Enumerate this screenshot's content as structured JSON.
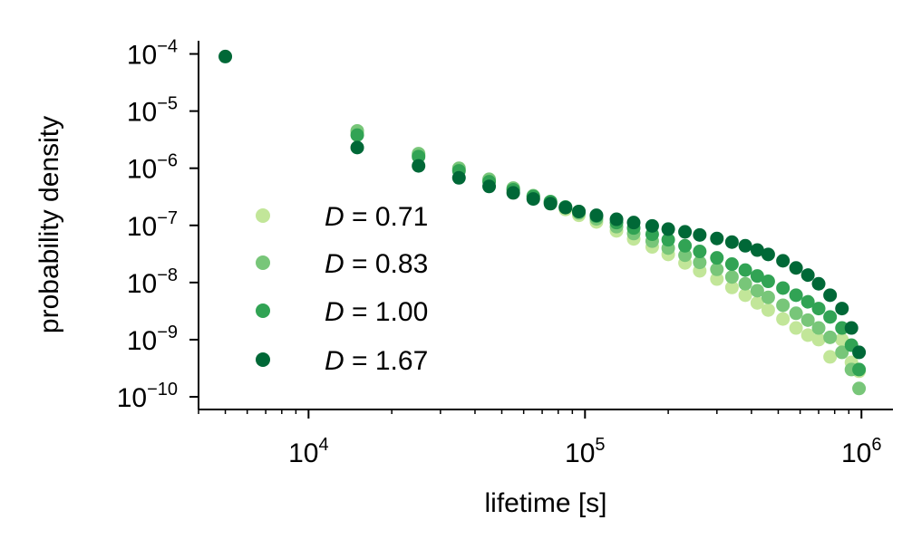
{
  "chart_data": {
    "type": "scatter",
    "xlabel": "lifetime [s]",
    "ylabel": "probability density",
    "xscale": "log",
    "yscale": "log",
    "xlim": [
      4000,
      1300000
    ],
    "ylim": [
      6e-11,
      0.00017
    ],
    "x_ticks": [
      {
        "value": 10000,
        "base": "10",
        "exp": "4"
      },
      {
        "value": 100000,
        "base": "10",
        "exp": "5"
      },
      {
        "value": 1000000,
        "base": "10",
        "exp": "6"
      }
    ],
    "y_ticks": [
      {
        "value": 0.0001,
        "base": "10",
        "exp": "−4"
      },
      {
        "value": 1e-05,
        "base": "10",
        "exp": "−5"
      },
      {
        "value": 1e-06,
        "base": "10",
        "exp": "−6"
      },
      {
        "value": 1e-07,
        "base": "10",
        "exp": "−7"
      },
      {
        "value": 1e-08,
        "base": "10",
        "exp": "−8"
      },
      {
        "value": 1e-09,
        "base": "10",
        "exp": "−9"
      },
      {
        "value": 1e-10,
        "base": "10",
        "exp": "−10"
      }
    ],
    "legend_position": "left",
    "grid": false,
    "series": [
      {
        "name": "D = 0.71",
        "symbol": "D",
        "value_text": " = 0.71",
        "color": "#c2e699",
        "x": [
          15000,
          25000,
          35000,
          45000,
          55000,
          65000,
          75000,
          85000,
          95000,
          110000,
          130000,
          150000,
          175000,
          200000,
          230000,
          260000,
          300000,
          340000,
          380000,
          420000,
          460000,
          520000,
          580000,
          640000,
          700000,
          770000,
          850000,
          920000,
          980000
        ],
        "y": [
          4.2e-06,
          1.7e-06,
          9.5e-07,
          6e-07,
          4.2e-07,
          3.1e-07,
          2.4e-07,
          1.9e-07,
          1.5e-07,
          1.15e-07,
          8e-08,
          5.8e-08,
          4.2e-08,
          3.1e-08,
          2.2e-08,
          1.6e-08,
          1.15e-08,
          8.2e-09,
          6e-09,
          4.4e-09,
          3.3e-09,
          2.3e-09,
          1.6e-09,
          1.2e-09,
          1e-09,
          5e-10,
          1e-09,
          4e-10,
          2.8e-10
        ]
      },
      {
        "name": "D = 0.83",
        "symbol": "D",
        "value_text": " = 0.83",
        "color": "#78c679",
        "x": [
          15000,
          25000,
          35000,
          45000,
          55000,
          65000,
          75000,
          85000,
          95000,
          110000,
          130000,
          150000,
          175000,
          200000,
          230000,
          260000,
          300000,
          340000,
          380000,
          420000,
          460000,
          520000,
          580000,
          640000,
          700000,
          770000,
          850000,
          920000,
          980000
        ],
        "y": [
          4.5e-06,
          1.8e-06,
          1e-06,
          6.4e-07,
          4.5e-07,
          3.3e-07,
          2.6e-07,
          2.05e-07,
          1.65e-07,
          1.3e-07,
          9.5e-08,
          7.2e-08,
          5.3e-08,
          4e-08,
          3e-08,
          2.25e-08,
          1.7e-08,
          1.25e-08,
          9.5e-09,
          7.2e-09,
          5.5e-09,
          4e-09,
          2.9e-09,
          2.2e-09,
          1.6e-09,
          1.1e-09,
          6e-10,
          3e-10,
          1.4e-10
        ]
      },
      {
        "name": "D = 1.00",
        "symbol": "D",
        "value_text": " = 1.00",
        "color": "#31a354",
        "x": [
          15000,
          25000,
          35000,
          45000,
          55000,
          65000,
          75000,
          85000,
          95000,
          110000,
          130000,
          150000,
          175000,
          200000,
          230000,
          260000,
          300000,
          340000,
          380000,
          420000,
          460000,
          520000,
          580000,
          640000,
          700000,
          770000,
          850000,
          920000,
          980000
        ],
        "y": [
          3.8e-06,
          1.6e-06,
          9e-07,
          5.8e-07,
          4.2e-07,
          3.2e-07,
          2.6e-07,
          2.1e-07,
          1.75e-07,
          1.45e-07,
          1.12e-07,
          9e-08,
          7e-08,
          5.6e-08,
          4.4e-08,
          3.5e-08,
          2.7e-08,
          2.1e-08,
          1.65e-08,
          1.3e-08,
          1.05e-08,
          8e-09,
          6e-09,
          4.6e-09,
          3.5e-09,
          2.5e-09,
          1.6e-09,
          8e-10,
          3e-10
        ]
      },
      {
        "name": "D = 1.67",
        "symbol": "D",
        "value_text": " = 1.67",
        "color": "#006837",
        "x": [
          5000,
          15000,
          25000,
          35000,
          45000,
          55000,
          65000,
          75000,
          85000,
          95000,
          110000,
          130000,
          150000,
          175000,
          200000,
          230000,
          260000,
          300000,
          340000,
          380000,
          420000,
          460000,
          520000,
          580000,
          640000,
          700000,
          770000,
          850000,
          920000,
          980000
        ],
        "y": [
          9e-05,
          2.3e-06,
          1.1e-06,
          6.8e-07,
          4.8e-07,
          3.7e-07,
          2.9e-07,
          2.4e-07,
          2.05e-07,
          1.75e-07,
          1.5e-07,
          1.28e-07,
          1.12e-07,
          9.8e-08,
          8.6e-08,
          7.7e-08,
          6.8e-08,
          5.9e-08,
          5.1e-08,
          4.4e-08,
          3.7e-08,
          3.1e-08,
          2.4e-08,
          1.8e-08,
          1.35e-08,
          9.5e-09,
          6e-09,
          3.5e-09,
          1.6e-09,
          6e-10
        ]
      }
    ]
  }
}
